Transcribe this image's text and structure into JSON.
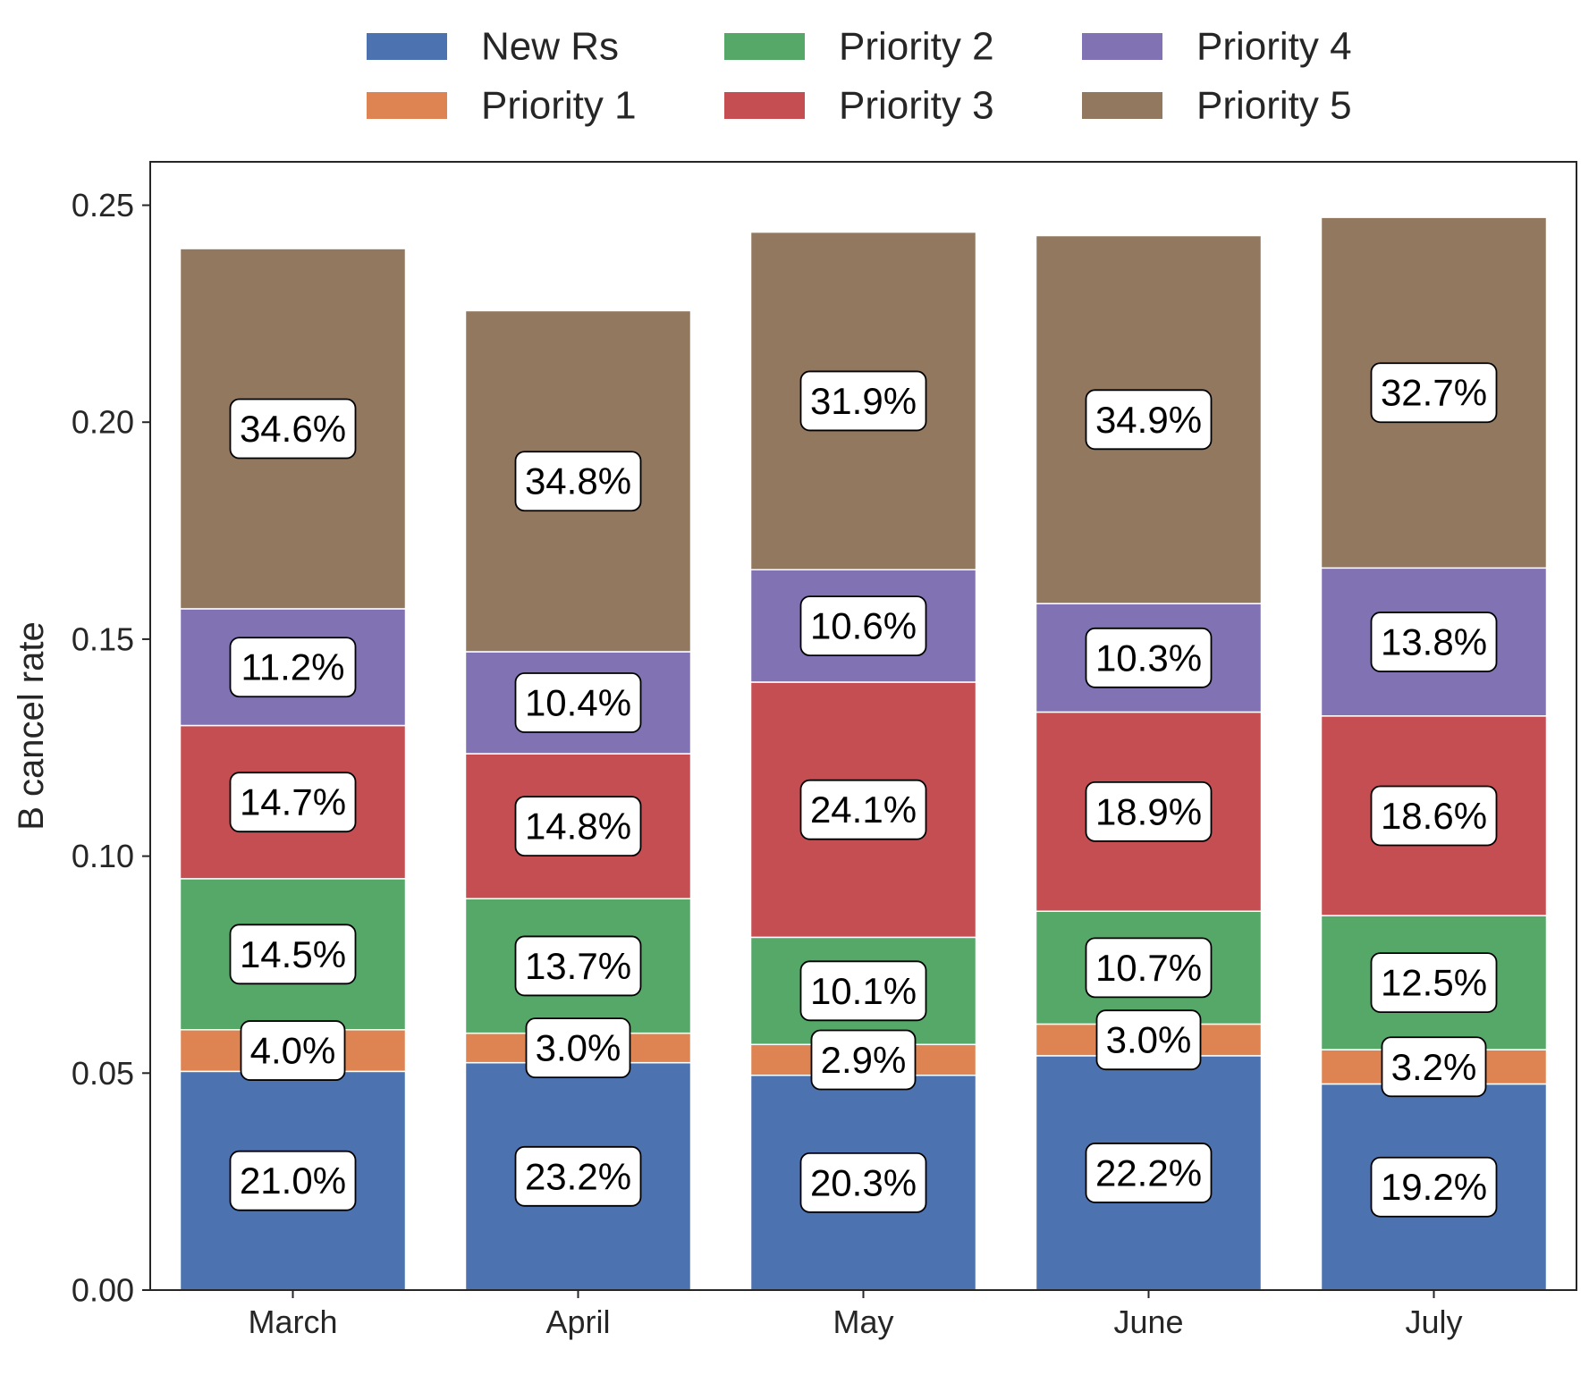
{
  "chart_data": {
    "type": "bar",
    "stacked": true,
    "title": "",
    "xlabel": "",
    "ylabel": "B cancel rate",
    "ylim": [
      0,
      0.26
    ],
    "yticks": [
      "0.00",
      "0.05",
      "0.10",
      "0.15",
      "0.20",
      "0.25"
    ],
    "categories": [
      "March",
      "April",
      "May",
      "June",
      "July"
    ],
    "legend_position": "top-center",
    "grid": false,
    "series": [
      {
        "name": "New Rs",
        "color": "#4c72b0",
        "values": [
          0.0504,
          0.0524,
          0.0495,
          0.054,
          0.0475
        ],
        "labels": [
          "21.0%",
          "23.2%",
          "20.3%",
          "22.2%",
          "19.2%"
        ]
      },
      {
        "name": "Priority 1",
        "color": "#dd8452",
        "values": [
          0.0096,
          0.0068,
          0.0071,
          0.0073,
          0.0079
        ],
        "labels": [
          "4.0%",
          "3.0%",
          "2.9%",
          "3.0%",
          "3.2%"
        ]
      },
      {
        "name": "Priority 2",
        "color": "#55a868",
        "values": [
          0.0348,
          0.031,
          0.0247,
          0.026,
          0.0309
        ],
        "labels": [
          "14.5%",
          "13.7%",
          "10.1%",
          "10.7%",
          "12.5%"
        ]
      },
      {
        "name": "Priority 3",
        "color": "#c44e52",
        "values": [
          0.0353,
          0.0334,
          0.0588,
          0.0459,
          0.046
        ],
        "labels": [
          "14.7%",
          "14.8%",
          "24.1%",
          "18.9%",
          "18.6%"
        ]
      },
      {
        "name": "Priority 4",
        "color": "#8172b3",
        "values": [
          0.0269,
          0.0235,
          0.0259,
          0.025,
          0.0341
        ],
        "labels": [
          "11.2%",
          "10.4%",
          "10.6%",
          "10.3%",
          "13.8%"
        ]
      },
      {
        "name": "Priority 5",
        "color": "#937860",
        "values": [
          0.083,
          0.0786,
          0.0778,
          0.0848,
          0.0808
        ],
        "labels": [
          "34.6%",
          "34.8%",
          "31.9%",
          "34.9%",
          "32.7%"
        ]
      }
    ]
  }
}
